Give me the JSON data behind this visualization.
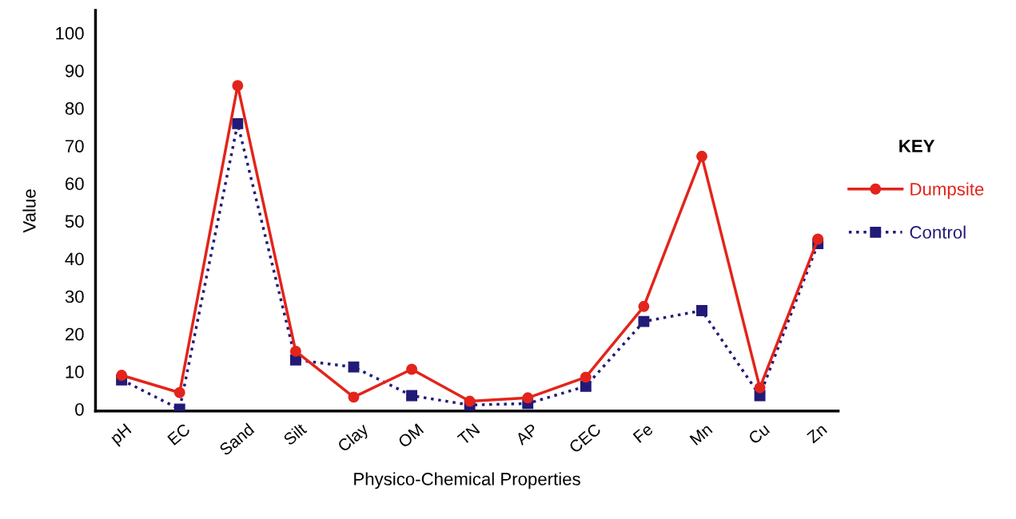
{
  "chart_data": {
    "type": "line",
    "xlabel": "Physico-Chemical Properties",
    "ylabel": "Value",
    "legend_title": "KEY",
    "categories": [
      "pH",
      "EC",
      "Sand",
      "Silt",
      "Clay",
      "OM",
      "TN",
      "AP",
      "CEC",
      "Fe",
      "Mn",
      "Cu",
      "Zn"
    ],
    "series": [
      {
        "name": "Dumpsite",
        "color": "#e3241b",
        "marker": "circle",
        "line_style": "solid",
        "values": [
          9,
          4.4,
          86,
          15.4,
          3.2,
          10.6,
          2.1,
          3,
          8.5,
          27.3,
          67.2,
          5.7,
          45.2
        ]
      },
      {
        "name": "Control",
        "color": "#221a78",
        "marker": "square",
        "line_style": "dotted",
        "values": [
          7.8,
          0,
          75.9,
          13.1,
          11.2,
          3.6,
          1.1,
          1.5,
          6.1,
          23.3,
          26.2,
          3.6,
          44
        ]
      }
    ],
    "ylim": [
      -0.5,
      106
    ],
    "yticks": [
      0,
      10,
      20,
      30,
      40,
      50,
      60,
      70,
      80,
      90,
      100
    ],
    "grid": false,
    "legend": "right"
  }
}
